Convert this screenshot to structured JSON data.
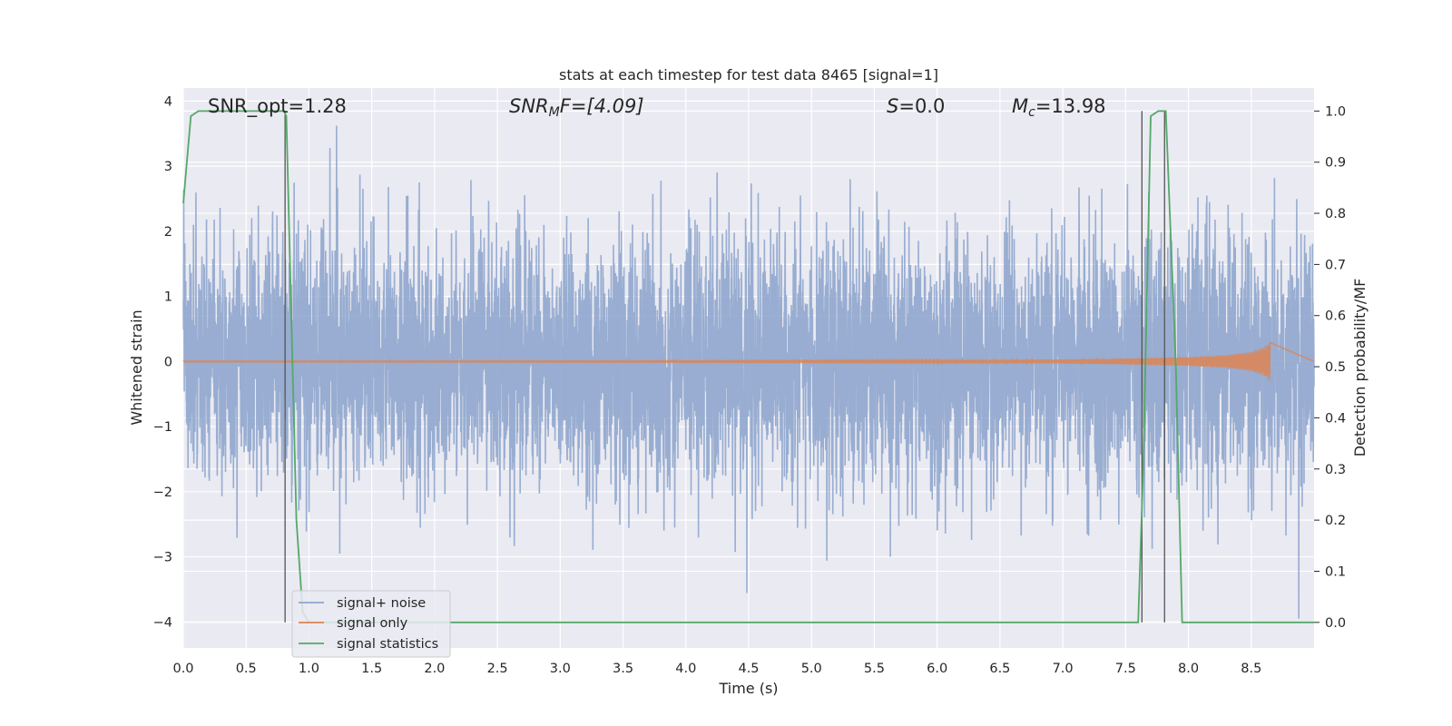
{
  "chart_data": {
    "type": "line",
    "title": "stats at each timestep for test data 8465 [signal=1]",
    "xlabel": "Time (s)",
    "ylabel_left": "Whitened strain",
    "ylabel_right": "Detection probability/MF",
    "xlim": [
      0.0,
      9.0
    ],
    "ylim_left": [
      -4.4,
      4.2
    ],
    "ylim_right": [
      -0.05,
      1.045
    ],
    "xticks": [
      "0.0",
      "0.5",
      "1.0",
      "1.5",
      "2.0",
      "2.5",
      "3.0",
      "3.5",
      "4.0",
      "4.5",
      "5.0",
      "5.5",
      "6.0",
      "6.5",
      "7.0",
      "7.5",
      "8.0",
      "8.5"
    ],
    "yticks_left": [
      "4",
      "3",
      "2",
      "1",
      "0",
      "−1",
      "−2",
      "−3",
      "−4"
    ],
    "yticks_right": [
      "1.0",
      "0.9",
      "0.8",
      "0.7",
      "0.6",
      "0.5",
      "0.4",
      "0.3",
      "0.2",
      "0.1",
      "0.0"
    ],
    "grid": true,
    "legend_placement": "lower-left",
    "annotations": {
      "snr_opt": "SNR_opt=1.28",
      "snr_mf_base": "SNR",
      "snr_mf_sub": "M",
      "snr_mf_rest": "F=[4.09]",
      "s_var": "S",
      "s_rest": "=0.0",
      "mc_var": "M",
      "mc_sub": "c",
      "mc_rest": "=13.98"
    },
    "vertical_lines_x": [
      0.81,
      7.63,
      7.81
    ],
    "series": [
      {
        "name": "signal+ noise",
        "color": "#8fa6cd",
        "description_envelope": "gaussian noise, typical amplitude about ±1.5, spikes to about ±3.8"
      },
      {
        "name": "signal only",
        "color": "#dd8452",
        "x": [
          0.0,
          1.0,
          2.0,
          3.0,
          4.0,
          5.0,
          6.0,
          6.5,
          7.0,
          7.5,
          8.0,
          8.3,
          8.5,
          8.6,
          8.65
        ],
        "amplitude": [
          0.01,
          0.01,
          0.01,
          0.01,
          0.012,
          0.014,
          0.018,
          0.022,
          0.03,
          0.045,
          0.07,
          0.1,
          0.15,
          0.22,
          0.3
        ]
      },
      {
        "name": "signal statistics",
        "color": "#55a868",
        "x": [
          0.0,
          0.06,
          0.12,
          0.2,
          0.4,
          0.6,
          0.8,
          0.82,
          0.9,
          0.95,
          1.0,
          2.0,
          4.0,
          6.0,
          7.0,
          7.6,
          7.64,
          7.7,
          7.76,
          7.82,
          7.9,
          7.95,
          8.2,
          9.0
        ],
        "y": [
          0.82,
          0.99,
          1.0,
          1.0,
          1.0,
          1.0,
          1.0,
          0.99,
          0.2,
          0.02,
          0.0,
          0.0,
          0.0,
          0.0,
          0.0,
          0.0,
          0.3,
          0.99,
          1.0,
          1.0,
          0.5,
          0.0,
          0.0,
          0.0
        ]
      }
    ]
  }
}
